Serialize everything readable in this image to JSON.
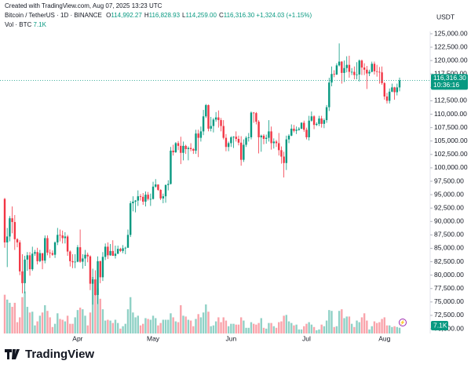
{
  "header": {
    "credit": "Created with TradingView.com, Aug 07, 2025 13:23 UTC",
    "symbol": "Bitcoin / TetherUS · 1D · BINANCE",
    "ohlc": [
      {
        "label": "O",
        "value": "114,992.27"
      },
      {
        "label": "H",
        "value": "116,828.93"
      },
      {
        "label": "L",
        "value": "114,259.00"
      },
      {
        "label": "C",
        "value": "116,316.30"
      }
    ],
    "change": "+1,324.03 (+1.15%)",
    "volume_title": "Vol · BTC",
    "volume_value": "7.1K"
  },
  "footer": {
    "logo": "TradingView"
  },
  "chart_data": {
    "type": "candlestick",
    "y_axis_title": "USDT",
    "up_color": "#089981",
    "down_color": "#f23645",
    "up_volume_color": "rgba(8,153,129,0.45)",
    "down_volume_color": "rgba(242,54,69,0.45)",
    "grid": false,
    "ylim": [
      70000,
      125000
    ],
    "yticks": [
      {
        "value": 70000,
        "label": "70,000.00"
      },
      {
        "value": 72500,
        "label": "72,500.00"
      },
      {
        "value": 75000,
        "label": "75,000.00"
      },
      {
        "value": 77500,
        "label": "77,500.00"
      },
      {
        "value": 80000,
        "label": "80,000.00"
      },
      {
        "value": 82500,
        "label": "82,500.00"
      },
      {
        "value": 85000,
        "label": "85,000.00"
      },
      {
        "value": 87500,
        "label": "87,500.00"
      },
      {
        "value": 90000,
        "label": "90,000.00"
      },
      {
        "value": 92500,
        "label": "92,500.00"
      },
      {
        "value": 95000,
        "label": "95,000.00"
      },
      {
        "value": 97500,
        "label": "97,500.00"
      },
      {
        "value": 100000,
        "label": "100,000.00"
      },
      {
        "value": 102500,
        "label": "102,500.00"
      },
      {
        "value": 105000,
        "label": "105,000.00"
      },
      {
        "value": 107500,
        "label": "107,500.00"
      },
      {
        "value": 110000,
        "label": "110,000.00"
      },
      {
        "value": 112500,
        "label": "112,500.00"
      },
      {
        "value": 115000,
        "label": "115,000.00"
      },
      {
        "value": 117500,
        "label": "117,500.00"
      },
      {
        "value": 120000,
        "label": "120,000.00"
      },
      {
        "value": 122500,
        "label": "122,500.00"
      },
      {
        "value": 125000,
        "label": "125,000.00"
      }
    ],
    "price_tag": {
      "label": "116,316.30",
      "countdown": "10:36:16"
    },
    "volume_tag": "7.1K",
    "categories": [
      null,
      null,
      null,
      null,
      null,
      null,
      null,
      null,
      null,
      null,
      null,
      null,
      null,
      null,
      null,
      null,
      null,
      null,
      null,
      null,
      null,
      null,
      null,
      null,
      null,
      null,
      null,
      null,
      null,
      "Apr",
      null,
      null,
      null,
      null,
      null,
      null,
      null,
      null,
      null,
      null,
      null,
      null,
      null,
      null,
      null,
      null,
      null,
      null,
      null,
      null,
      null,
      null,
      null,
      null,
      null,
      null,
      null,
      null,
      null,
      "May",
      null,
      null,
      null,
      null,
      null,
      null,
      null,
      null,
      null,
      null,
      null,
      null,
      null,
      null,
      null,
      null,
      null,
      null,
      null,
      null,
      null,
      null,
      null,
      null,
      null,
      null,
      null,
      null,
      null,
      null,
      "Jun",
      null,
      null,
      null,
      null,
      null,
      null,
      null,
      null,
      null,
      null,
      null,
      null,
      null,
      null,
      null,
      null,
      null,
      null,
      null,
      null,
      null,
      null,
      null,
      null,
      null,
      null,
      null,
      null,
      null,
      "Jul",
      null,
      null,
      null,
      null,
      null,
      null,
      null,
      null,
      null,
      null,
      null,
      null,
      null,
      null,
      null,
      null,
      null,
      null,
      null,
      null,
      null,
      null,
      null,
      null,
      null,
      null,
      null,
      null,
      null,
      null,
      "Aug",
      null,
      null,
      null,
      null,
      null,
      null
    ],
    "candles": [
      [
        94200,
        94400,
        85100,
        86100
      ],
      [
        86100,
        88800,
        81500,
        87200
      ],
      [
        87200,
        91000,
        86300,
        90600
      ],
      [
        90600,
        92800,
        87800,
        89900
      ],
      [
        89900,
        91200,
        84700,
        86700
      ],
      [
        86700,
        86900,
        85200,
        86100
      ],
      [
        86100,
        86500,
        80000,
        80700
      ],
      [
        80700,
        83900,
        76600,
        78500
      ],
      [
        78500,
        83600,
        76600,
        82900
      ],
      [
        82900,
        84300,
        80800,
        83700
      ],
      [
        83700,
        84300,
        79900,
        81100
      ],
      [
        81100,
        85300,
        80800,
        84000
      ],
      [
        84000,
        84700,
        83600,
        84300
      ],
      [
        84300,
        85100,
        82000,
        82600
      ],
      [
        82600,
        84700,
        82400,
        84100
      ],
      [
        84100,
        84100,
        81100,
        82700
      ],
      [
        82700,
        87400,
        82200,
        86900
      ],
      [
        86900,
        87400,
        83700,
        84200
      ],
      [
        84200,
        84800,
        83200,
        84100
      ],
      [
        84100,
        84600,
        83600,
        83800
      ],
      [
        83800,
        86300,
        83200,
        86100
      ],
      [
        86100,
        88800,
        85600,
        87500
      ],
      [
        87500,
        88500,
        86300,
        87400
      ],
      [
        87400,
        88300,
        85900,
        86900
      ],
      [
        86900,
        88000,
        85900,
        87200
      ],
      [
        87200,
        87500,
        83600,
        84400
      ],
      [
        84400,
        84600,
        81600,
        82600
      ],
      [
        82600,
        83900,
        81300,
        82400
      ],
      [
        82400,
        83900,
        81300,
        82500
      ],
      [
        82500,
        85600,
        82400,
        85200
      ],
      [
        85200,
        88500,
        82300,
        82500
      ],
      [
        82500,
        83900,
        81200,
        83100
      ],
      [
        83100,
        84700,
        81700,
        83800
      ],
      [
        83800,
        84200,
        82400,
        83500
      ],
      [
        83500,
        83700,
        77200,
        78400
      ],
      [
        78400,
        81200,
        74500,
        79200
      ],
      [
        79200,
        80900,
        76200,
        76300
      ],
      [
        76300,
        83500,
        74600,
        82600
      ],
      [
        82600,
        82700,
        78500,
        79600
      ],
      [
        79600,
        84300,
        78900,
        83400
      ],
      [
        83400,
        85900,
        82800,
        85300
      ],
      [
        85300,
        86100,
        83000,
        83700
      ],
      [
        83700,
        85800,
        83600,
        84500
      ],
      [
        84500,
        86500,
        83600,
        83600
      ],
      [
        83600,
        85500,
        83100,
        84000
      ],
      [
        84000,
        85500,
        83900,
        84900
      ],
      [
        84900,
        85100,
        84300,
        84500
      ],
      [
        84500,
        85600,
        84100,
        85000
      ],
      [
        85000,
        85300,
        83900,
        85100
      ],
      [
        85100,
        88500,
        85100,
        87500
      ],
      [
        87500,
        93800,
        87100,
        93400
      ],
      [
        93400,
        94700,
        91900,
        93700
      ],
      [
        93700,
        94000,
        91700,
        93900
      ],
      [
        93900,
        95800,
        92900,
        94700
      ],
      [
        94700,
        95100,
        93900,
        94600
      ],
      [
        94600,
        95300,
        93100,
        93700
      ],
      [
        93700,
        95600,
        92800,
        95000
      ],
      [
        95000,
        95500,
        93900,
        94200
      ],
      [
        94200,
        95200,
        92900,
        94200
      ],
      [
        94200,
        97400,
        94100,
        96500
      ],
      [
        96500,
        97900,
        96300,
        96900
      ],
      [
        96900,
        96900,
        95700,
        95900
      ],
      [
        95900,
        96000,
        94000,
        94300
      ],
      [
        94300,
        95200,
        93400,
        94700
      ],
      [
        94700,
        96900,
        93500,
        96800
      ],
      [
        96800,
        97700,
        95800,
        97000
      ],
      [
        97000,
        103900,
        96900,
        103200
      ],
      [
        103200,
        104300,
        102300,
        102900
      ],
      [
        102900,
        104800,
        102800,
        104600
      ],
      [
        104600,
        105000,
        103300,
        104100
      ],
      [
        104100,
        105800,
        100700,
        102800
      ],
      [
        102800,
        104900,
        101400,
        104100
      ],
      [
        104100,
        104300,
        102600,
        103500
      ],
      [
        103500,
        104000,
        101400,
        103700
      ],
      [
        103700,
        104600,
        103100,
        103500
      ],
      [
        103500,
        103700,
        102600,
        103200
      ],
      [
        103200,
        107100,
        102600,
        106400
      ],
      [
        106400,
        107100,
        102000,
        105600
      ],
      [
        105600,
        107700,
        104900,
        106800
      ],
      [
        106800,
        110800,
        106100,
        109600
      ],
      [
        109600,
        111900,
        109300,
        111700
      ],
      [
        111700,
        111800,
        106800,
        107300
      ],
      [
        107300,
        109500,
        106800,
        107800
      ],
      [
        107800,
        109300,
        106600,
        109000
      ],
      [
        109000,
        110400,
        108600,
        109400
      ],
      [
        109400,
        110700,
        107500,
        108900
      ],
      [
        108900,
        109300,
        106800,
        107800
      ],
      [
        107800,
        108900,
        105300,
        105600
      ],
      [
        105600,
        106300,
        103100,
        103900
      ],
      [
        103900,
        104900,
        103100,
        104600
      ],
      [
        104600,
        105900,
        103900,
        105700
      ],
      [
        105700,
        105900,
        103700,
        105800
      ],
      [
        105800,
        106800,
        104900,
        105400
      ],
      [
        105400,
        106000,
        104200,
        104700
      ],
      [
        104700,
        105900,
        100400,
        101500
      ],
      [
        101500,
        105300,
        101100,
        104300
      ],
      [
        104300,
        105900,
        103900,
        105600
      ],
      [
        105600,
        106500,
        104900,
        105700
      ],
      [
        105700,
        110500,
        105300,
        110300
      ],
      [
        110300,
        110400,
        108400,
        110200
      ],
      [
        110200,
        110400,
        108100,
        108600
      ],
      [
        108600,
        108900,
        102700,
        105700
      ],
      [
        105700,
        106200,
        103000,
        106000
      ],
      [
        106000,
        106300,
        104400,
        105400
      ],
      [
        105400,
        106200,
        104500,
        105600
      ],
      [
        105600,
        108900,
        104900,
        106800
      ],
      [
        106800,
        107700,
        103400,
        104600
      ],
      [
        104600,
        105500,
        103600,
        104900
      ],
      [
        104900,
        105200,
        103900,
        104600
      ],
      [
        104600,
        106500,
        102300,
        103300
      ],
      [
        103300,
        104000,
        100800,
        102100
      ],
      [
        102100,
        103000,
        98200,
        100900
      ],
      [
        100900,
        106000,
        99600,
        105300
      ],
      [
        105300,
        106300,
        104600,
        106000
      ],
      [
        106000,
        108100,
        105900,
        107300
      ],
      [
        107300,
        108000,
        106600,
        106900
      ],
      [
        106900,
        107700,
        106300,
        107100
      ],
      [
        107100,
        107600,
        106900,
        107300
      ],
      [
        107300,
        108500,
        107200,
        108400
      ],
      [
        108400,
        108800,
        106700,
        107100
      ],
      [
        107100,
        107500,
        105300,
        105700
      ],
      [
        105700,
        109700,
        105100,
        108800
      ],
      [
        108800,
        110500,
        108600,
        109600
      ],
      [
        109600,
        109800,
        107200,
        108000
      ],
      [
        108000,
        108500,
        107800,
        108200
      ],
      [
        108200,
        109700,
        107800,
        109200
      ],
      [
        109200,
        109700,
        107500,
        108200
      ],
      [
        108200,
        109200,
        107400,
        108900
      ],
      [
        108900,
        111700,
        108400,
        111300
      ],
      [
        111300,
        116800,
        110600,
        115900
      ],
      [
        115900,
        118900,
        115200,
        117500
      ],
      [
        117500,
        118200,
        116900,
        117400
      ],
      [
        117400,
        119500,
        117300,
        119100
      ],
      [
        119100,
        123200,
        118900,
        119800
      ],
      [
        119800,
        119900,
        115700,
        117700
      ],
      [
        117700,
        120000,
        116000,
        118600
      ],
      [
        118600,
        120800,
        117800,
        119200
      ],
      [
        119200,
        120900,
        116800,
        117900
      ],
      [
        117900,
        118600,
        117300,
        117900
      ],
      [
        117900,
        118900,
        116500,
        117300
      ],
      [
        117300,
        119700,
        116500,
        117400
      ],
      [
        117400,
        120200,
        116100,
        120000
      ],
      [
        120000,
        120200,
        117300,
        118700
      ],
      [
        118700,
        119500,
        117300,
        118300
      ],
      [
        118300,
        119000,
        114700,
        117600
      ],
      [
        117600,
        118300,
        117100,
        117900
      ],
      [
        117900,
        119800,
        117800,
        119400
      ],
      [
        119400,
        119800,
        117400,
        118000
      ],
      [
        118000,
        119200,
        117000,
        117900
      ],
      [
        117900,
        118800,
        115700,
        117800
      ],
      [
        117800,
        118900,
        115500,
        115800
      ],
      [
        115800,
        116000,
        112700,
        113300
      ],
      [
        113300,
        114000,
        112000,
        112500
      ],
      [
        112500,
        114800,
        112000,
        114200
      ],
      [
        114200,
        115700,
        114100,
        115000
      ],
      [
        115000,
        115100,
        112700,
        114100
      ],
      [
        114100,
        115700,
        113500,
        115000
      ],
      [
        114992.27,
        116828.93,
        114259,
        116316.3
      ]
    ],
    "volumes": [
      48000,
      42000,
      38000,
      33000,
      38000,
      14000,
      20000,
      45000,
      52000,
      33000,
      26000,
      27000,
      10000,
      15000,
      22000,
      26000,
      35000,
      28000,
      20000,
      8000,
      12000,
      25000,
      18000,
      17000,
      15000,
      22000,
      12000,
      12000,
      20000,
      29000,
      32000,
      30000,
      22000,
      10000,
      26000,
      70000,
      50000,
      56000,
      43000,
      30000,
      16000,
      17000,
      16000,
      13000,
      17000,
      13000,
      6000,
      9000,
      12000,
      30000,
      45000,
      26000,
      20000,
      22000,
      10000,
      12000,
      19000,
      18000,
      17000,
      22000,
      19000,
      10000,
      13000,
      17000,
      17000,
      17000,
      25000,
      20000,
      15000,
      14000,
      35000,
      22000,
      21000,
      17000,
      16000,
      9000,
      18000,
      24000,
      20000,
      26000,
      36000,
      27000,
      9000,
      10000,
      15000,
      20000,
      14000,
      20000,
      16000,
      9000,
      12000,
      12000,
      11000,
      11000,
      20000,
      16000,
      7000,
      7000,
      14000,
      12000,
      11000,
      13000,
      19000,
      7000,
      6000,
      13000,
      13000,
      9000,
      7000,
      14000,
      15000,
      22000,
      23000,
      15000,
      13000,
      10000,
      11000,
      5000,
      5000,
      9000,
      12000,
      14000,
      11000,
      8000,
      4000,
      5000,
      11000,
      9000,
      16000,
      29000,
      28000,
      8000,
      9000,
      28000,
      30000,
      19000,
      21000,
      21000,
      12000,
      8000,
      16000,
      14000,
      20000,
      25000,
      16000,
      5000,
      9000,
      15000,
      13000,
      14000,
      18000,
      20000,
      10000,
      10000,
      8000,
      9000,
      8000,
      7100
    ]
  }
}
